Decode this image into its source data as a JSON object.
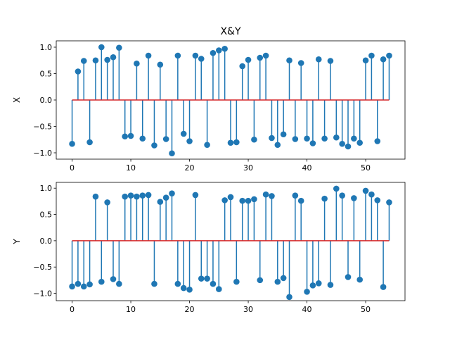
{
  "chart_data": [
    {
      "type": "stem",
      "title": "X&Y",
      "xlabel": "",
      "ylabel": "X",
      "xlim": [
        -2.7,
        56.7
      ],
      "ylim": [
        -1.12,
        1.12
      ],
      "xticks": [
        0,
        10,
        20,
        30,
        40,
        50
      ],
      "yticks": [
        -1.0,
        -0.5,
        0.0,
        0.5,
        1.0
      ],
      "xtick_labels": [
        "0",
        "10",
        "20",
        "30",
        "40",
        "50"
      ],
      "ytick_labels": [
        "−1.0",
        "−0.5",
        "0.0",
        "0.5",
        "1.0"
      ],
      "grid": false,
      "stem_color": "#1f77b4",
      "baseline_color": "#d62728",
      "x": [
        0,
        1,
        2,
        3,
        4,
        5,
        6,
        7,
        8,
        9,
        10,
        11,
        12,
        13,
        14,
        15,
        16,
        17,
        18,
        19,
        20,
        21,
        22,
        23,
        24,
        25,
        26,
        27,
        28,
        29,
        30,
        31,
        32,
        33,
        34,
        35,
        36,
        37,
        38,
        39,
        40,
        41,
        42,
        43,
        44,
        45,
        46,
        47,
        48,
        49,
        50,
        51,
        52,
        53,
        54
      ],
      "values": [
        -0.83,
        0.54,
        0.74,
        -0.8,
        0.75,
        1.0,
        0.76,
        0.81,
        0.99,
        -0.69,
        -0.68,
        0.69,
        -0.73,
        0.84,
        -0.86,
        0.67,
        -0.74,
        -1.01,
        0.84,
        -0.64,
        -0.78,
        0.84,
        0.78,
        -0.85,
        0.89,
        0.94,
        0.97,
        -0.81,
        -0.8,
        0.64,
        0.76,
        -0.75,
        0.8,
        0.84,
        -0.72,
        -0.85,
        -0.65,
        0.75,
        -0.74,
        0.7,
        -0.73,
        -0.82,
        0.77,
        -0.73,
        0.74,
        -0.71,
        -0.83,
        -0.88,
        -0.73,
        -0.81,
        0.75,
        0.84,
        -0.78,
        0.77,
        0.84
      ]
    },
    {
      "type": "stem",
      "title": "",
      "xlabel": "",
      "ylabel": "Y",
      "xlim": [
        -2.7,
        56.7
      ],
      "ylim": [
        -1.14,
        1.11
      ],
      "xticks": [
        0,
        10,
        20,
        30,
        40,
        50
      ],
      "yticks": [
        -1.0,
        -0.5,
        0.0,
        0.5,
        1.0
      ],
      "xtick_labels": [
        "0",
        "10",
        "20",
        "30",
        "40",
        "50"
      ],
      "ytick_labels": [
        "−1.0",
        "−0.5",
        "0.0",
        "0.5",
        "1.0"
      ],
      "grid": false,
      "stem_color": "#1f77b4",
      "baseline_color": "#d62728",
      "x": [
        0,
        1,
        2,
        3,
        4,
        5,
        6,
        7,
        8,
        9,
        10,
        11,
        12,
        13,
        14,
        15,
        16,
        17,
        18,
        19,
        20,
        21,
        22,
        23,
        24,
        25,
        26,
        27,
        28,
        29,
        30,
        31,
        32,
        33,
        34,
        35,
        36,
        37,
        38,
        39,
        40,
        41,
        42,
        43,
        44,
        45,
        46,
        47,
        48,
        49,
        50,
        51,
        52,
        53,
        54
      ],
      "values": [
        -0.87,
        -0.82,
        -0.87,
        -0.83,
        0.84,
        -0.78,
        0.73,
        -0.73,
        -0.82,
        0.84,
        0.86,
        0.84,
        0.86,
        0.87,
        -0.82,
        0.74,
        0.82,
        0.9,
        -0.82,
        -0.9,
        -0.93,
        0.87,
        -0.72,
        -0.72,
        -0.82,
        -0.92,
        0.77,
        0.83,
        -0.78,
        0.76,
        0.76,
        0.79,
        -0.75,
        0.88,
        0.85,
        -0.78,
        -0.71,
        -1.07,
        0.86,
        0.76,
        -0.97,
        -0.85,
        -0.81,
        0.8,
        -0.84,
        0.99,
        0.86,
        -0.69,
        0.81,
        -0.74,
        0.95,
        0.88,
        0.77,
        -0.88,
        0.73
      ]
    }
  ]
}
